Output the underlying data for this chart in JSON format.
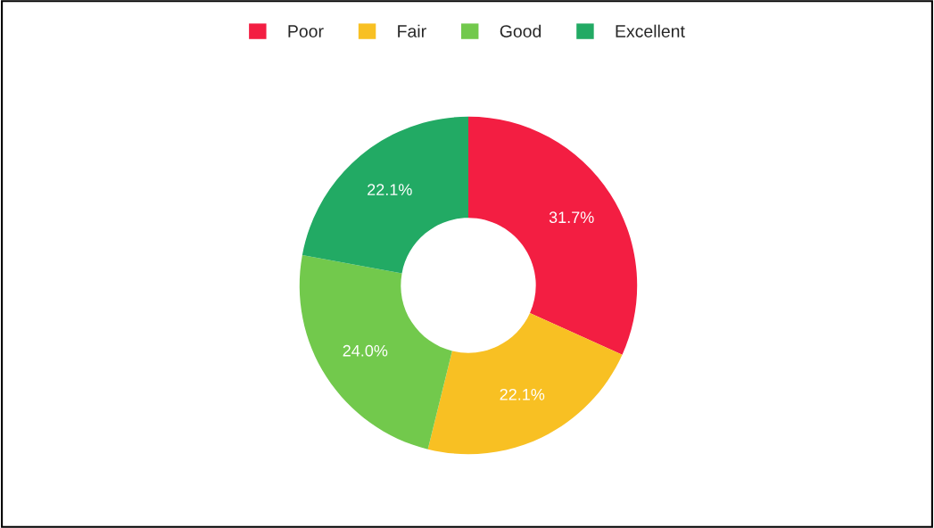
{
  "chart_data": {
    "type": "donut",
    "categories": [
      "Poor",
      "Fair",
      "Good",
      "Excellent"
    ],
    "values": [
      31.7,
      22.1,
      24.0,
      22.1
    ],
    "colors": [
      "#f31e42",
      "#f8c023",
      "#72c94c",
      "#22aa64"
    ],
    "value_labels": [
      "31.7%",
      "22.1%",
      "24.0%",
      "22.1%"
    ],
    "legend": "top"
  }
}
